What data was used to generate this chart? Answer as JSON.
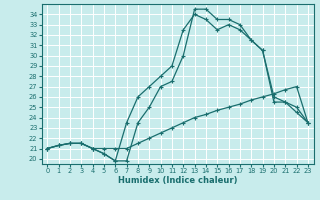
{
  "bg_color": "#c8ecec",
  "grid_color": "#b0d8d8",
  "line_color": "#1a6e6e",
  "xlabel": "Humidex (Indice chaleur)",
  "xlim": [
    -0.5,
    23.5
  ],
  "ylim": [
    19.5,
    35.0
  ],
  "yticks": [
    20,
    21,
    22,
    23,
    24,
    25,
    26,
    27,
    28,
    29,
    30,
    31,
    32,
    33,
    34
  ],
  "xticks": [
    0,
    1,
    2,
    3,
    4,
    5,
    6,
    7,
    8,
    9,
    10,
    11,
    12,
    13,
    14,
    15,
    16,
    17,
    18,
    19,
    20,
    21,
    22,
    23
  ],
  "line1_x": [
    0,
    1,
    2,
    3,
    4,
    5,
    6,
    7,
    8,
    9,
    10,
    11,
    12,
    13,
    14,
    15,
    16,
    17,
    18,
    19,
    20,
    21,
    22,
    23
  ],
  "line1_y": [
    21.0,
    21.3,
    21.5,
    21.5,
    21.0,
    21.0,
    21.0,
    21.0,
    21.5,
    22.0,
    22.5,
    23.0,
    23.5,
    24.0,
    24.3,
    24.7,
    25.0,
    25.3,
    25.7,
    26.0,
    26.3,
    26.7,
    27.0,
    23.5
  ],
  "line2_x": [
    0,
    1,
    2,
    3,
    4,
    5,
    6,
    7,
    8,
    9,
    10,
    11,
    12,
    13,
    14,
    15,
    16,
    17,
    18,
    19,
    20,
    21,
    22,
    23
  ],
  "line2_y": [
    21.0,
    21.3,
    21.5,
    21.5,
    21.0,
    20.5,
    19.8,
    19.8,
    23.5,
    25.0,
    27.0,
    27.5,
    30.0,
    34.5,
    34.5,
    33.5,
    33.5,
    33.0,
    31.5,
    30.5,
    25.5,
    25.5,
    25.0,
    23.5
  ],
  "line3_x": [
    0,
    1,
    2,
    3,
    4,
    5,
    6,
    7,
    8,
    9,
    10,
    11,
    12,
    13,
    14,
    15,
    16,
    17,
    18,
    19,
    20,
    21,
    22,
    23
  ],
  "line3_y": [
    21.0,
    21.3,
    21.5,
    21.5,
    21.0,
    20.5,
    19.8,
    23.5,
    26.0,
    27.0,
    28.0,
    29.0,
    32.5,
    34.0,
    33.5,
    32.5,
    33.0,
    32.5,
    31.5,
    30.5,
    26.0,
    25.5,
    24.5,
    23.5
  ]
}
